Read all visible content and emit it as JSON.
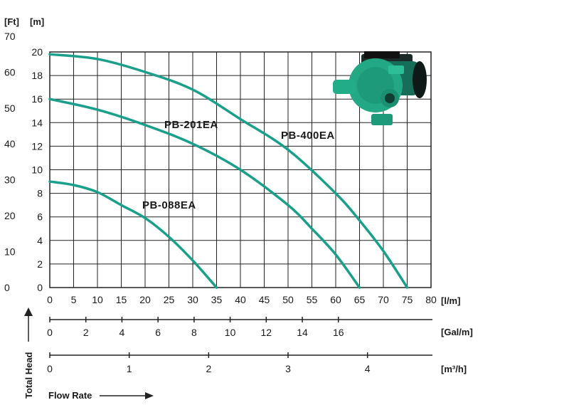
{
  "chart_data": {
    "type": "line",
    "title": "",
    "x_unit": "[l/m]",
    "x_range": [
      0,
      80
    ],
    "x_ticks": [
      "0",
      "5",
      "10",
      "15",
      "20",
      "25",
      "30",
      "35",
      "40",
      "45",
      "50",
      "55",
      "60",
      "65",
      "70",
      "75",
      "80"
    ],
    "y_unit_m": "[m]",
    "y_range_m": [
      0,
      20
    ],
    "y_ticks_m": [
      "0",
      "2",
      "4",
      "6",
      "8",
      "10",
      "12",
      "14",
      "16",
      "18",
      "20"
    ],
    "y_unit_ft": "[Ft]",
    "y_ticks_ft": [
      "0",
      "10",
      "20",
      "30",
      "40",
      "50",
      "60",
      "70"
    ],
    "gal_unit": "[Gal/m]",
    "gal_ticks": [
      "0",
      "2",
      "4",
      "6",
      "8",
      "10",
      "12",
      "14",
      "16"
    ],
    "m3_unit": "[m³/h]",
    "m3_ticks": [
      "0",
      "1",
      "2",
      "3",
      "4"
    ],
    "ylabel": "Total Head",
    "xlabel": "Flow Rate",
    "grid": true,
    "series": [
      {
        "name": "PB-088EA",
        "color": "#1aa08a",
        "x": [
          0,
          5,
          10,
          15,
          20,
          25,
          30,
          35
        ],
        "y": [
          9,
          8.7,
          8.1,
          7.0,
          5.9,
          4.3,
          2.3,
          0
        ]
      },
      {
        "name": "PB-201EA",
        "color": "#1aa08a",
        "x": [
          0,
          10,
          20,
          30,
          40,
          50,
          55,
          60,
          65
        ],
        "y": [
          16,
          15.1,
          13.8,
          12.2,
          10.0,
          7.0,
          5.0,
          2.8,
          0
        ]
      },
      {
        "name": "PB-400EA",
        "color": "#1aa08a",
        "x": [
          0,
          10,
          20,
          30,
          40,
          50,
          60,
          65,
          70,
          75
        ],
        "y": [
          19.8,
          19.4,
          18.3,
          16.8,
          14.3,
          11.7,
          8.0,
          5.7,
          3.1,
          0
        ]
      }
    ]
  },
  "photo": {
    "name": "pump-icon",
    "color": "#1d9a7a"
  }
}
